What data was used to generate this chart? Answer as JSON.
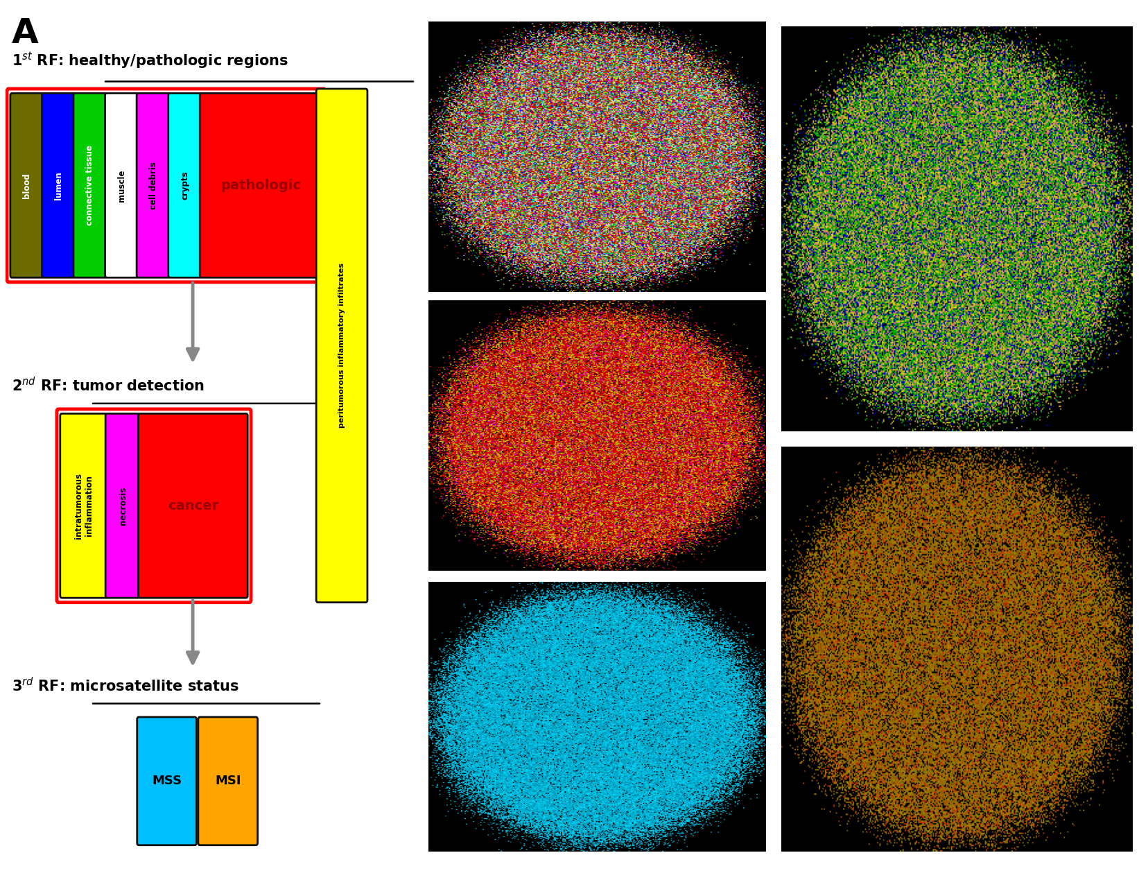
{
  "panel_A": {
    "rf1_boxes": [
      {
        "label": "blood",
        "color": "#6B6B00",
        "text_color": "white"
      },
      {
        "label": "lumen",
        "color": "#0000FF",
        "text_color": "white"
      },
      {
        "label": "connective tissue",
        "color": "#00CC00",
        "text_color": "white"
      },
      {
        "label": "muscle",
        "color": "#FFFFFF",
        "text_color": "black"
      },
      {
        "label": "cell debris",
        "color": "#FF00FF",
        "text_color": "black"
      },
      {
        "label": "crypts",
        "color": "#00FFFF",
        "text_color": "black"
      }
    ],
    "rf2_boxes": [
      {
        "label": "intratumorous\ninflammation",
        "color": "#FFFF00",
        "text_color": "black"
      },
      {
        "label": "necrosis",
        "color": "#FF00FF",
        "text_color": "black"
      }
    ],
    "rf3_boxes": [
      {
        "label": "MSS",
        "color": "#00BFFF",
        "text_color": "black"
      },
      {
        "label": "MSI",
        "color": "#FFA500",
        "text_color": "black"
      }
    ],
    "pathologic_color": "#FF0000",
    "cancer_color": "#FF0000",
    "peritumorous_color": "#FFFF00",
    "border_color": "#111111",
    "red_border": "#FF0000",
    "arrow_color": "#888888",
    "bg_color": "#FFFFFF",
    "underline_color": "#000000"
  }
}
